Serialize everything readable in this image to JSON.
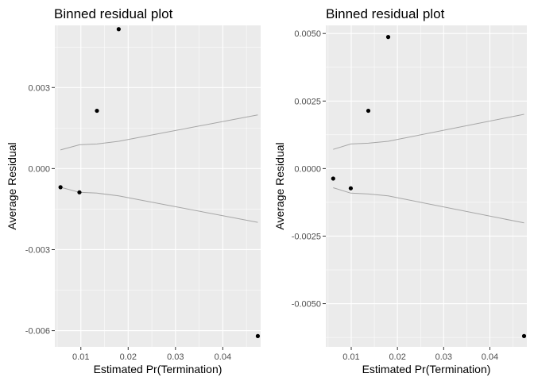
{
  "chart_data": [
    {
      "type": "scatter",
      "title": "Binned residual plot",
      "xlabel": "Estimated Pr(Termination)",
      "ylabel": "Average Residual",
      "xlim": [
        0.0045,
        0.048
      ],
      "ylim": [
        -0.0066,
        0.0053
      ],
      "x_ticks": [
        0.01,
        0.02,
        0.03,
        0.04
      ],
      "x_tick_labels": [
        "0.01",
        "0.02",
        "0.03",
        "0.04"
      ],
      "y_ticks": [
        0.003,
        0.0,
        -0.003,
        -0.006
      ],
      "y_tick_labels": [
        "0.003",
        "0.000",
        "-0.003",
        "-0.006"
      ],
      "grid": true,
      "points": [
        {
          "x": 0.0057,
          "y": -0.00069
        },
        {
          "x": 0.0097,
          "y": -0.00088
        },
        {
          "x": 0.0134,
          "y": 0.00214
        },
        {
          "x": 0.018,
          "y": 0.00516
        },
        {
          "x": 0.0474,
          "y": -0.0062
        }
      ],
      "bounds_upper": [
        {
          "x": 0.0057,
          "y": 0.00069
        },
        {
          "x": 0.0097,
          "y": 0.00088
        },
        {
          "x": 0.0134,
          "y": 0.00091
        },
        {
          "x": 0.018,
          "y": 0.00101
        },
        {
          "x": 0.0474,
          "y": 0.00199
        }
      ],
      "bounds_lower": [
        {
          "x": 0.0057,
          "y": -0.00069
        },
        {
          "x": 0.0097,
          "y": -0.00088
        },
        {
          "x": 0.0134,
          "y": -0.00091
        },
        {
          "x": 0.018,
          "y": -0.00101
        },
        {
          "x": 0.0474,
          "y": -0.00199
        }
      ],
      "colors": {
        "panel": "#ebebeb",
        "grid": "#ffffff",
        "points": "#000000",
        "bounds": "#a6a6a6"
      }
    },
    {
      "type": "scatter",
      "title": "Binned residual plot",
      "xlabel": "Estimated Pr(Termination)",
      "ylabel": "Average Residual",
      "xlim": [
        0.0045,
        0.048
      ],
      "ylim": [
        -0.0066,
        0.0053
      ],
      "x_ticks": [
        0.01,
        0.02,
        0.03,
        0.04
      ],
      "x_tick_labels": [
        "0.01",
        "0.02",
        "0.03",
        "0.04"
      ],
      "y_ticks": [
        0.005,
        0.0025,
        0.0,
        -0.0025,
        -0.005
      ],
      "y_tick_labels": [
        "0.0050",
        "0.0025",
        "0.0000",
        "-0.0025",
        "-0.0050"
      ],
      "grid": true,
      "points": [
        {
          "x": 0.0061,
          "y": -0.00037
        },
        {
          "x": 0.0099,
          "y": -0.00073
        },
        {
          "x": 0.0137,
          "y": 0.00214
        },
        {
          "x": 0.018,
          "y": 0.00487
        },
        {
          "x": 0.0474,
          "y": -0.0062
        }
      ],
      "bounds_upper": [
        {
          "x": 0.0061,
          "y": 0.00071
        },
        {
          "x": 0.0099,
          "y": 0.00091
        },
        {
          "x": 0.0137,
          "y": 0.00094
        },
        {
          "x": 0.018,
          "y": 0.00101
        },
        {
          "x": 0.0474,
          "y": 0.00201
        }
      ],
      "bounds_lower": [
        {
          "x": 0.0061,
          "y": -0.00071
        },
        {
          "x": 0.0099,
          "y": -0.00091
        },
        {
          "x": 0.0137,
          "y": -0.00094
        },
        {
          "x": 0.018,
          "y": -0.00101
        },
        {
          "x": 0.0474,
          "y": -0.00201
        }
      ],
      "colors": {
        "panel": "#ebebeb",
        "grid": "#ffffff",
        "points": "#000000",
        "bounds": "#a6a6a6"
      }
    }
  ]
}
